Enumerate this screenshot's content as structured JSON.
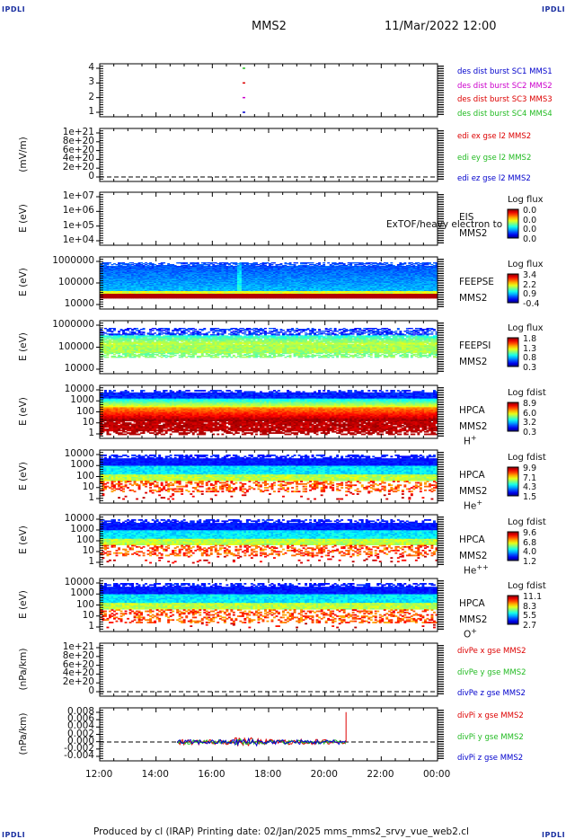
{
  "header": {
    "title": "MMS2",
    "datetime": "11/Mar/2022 12:00",
    "corner": "IPDLI"
  },
  "footer": {
    "text": "Produced by cl (IRAP)   Printing date: 02/Jan/2025   mms_mms2_srvy_vue_web2.cl"
  },
  "colors": {
    "mms1": "#0000cc",
    "mms2": "#cc00cc",
    "mms3": "#dd0000",
    "mms4": "#22bb22",
    "x": "#dd0000",
    "y": "#22bb22",
    "z": "#0000cc"
  },
  "chart_data": [
    {
      "id": "burst",
      "type": "scatter",
      "yticks": [
        "4",
        "3",
        "2",
        "1"
      ],
      "legend": [
        "des dist burst SC1 MMS1",
        "des dist burst SC2 MMS2",
        "des dist burst SC3 MMS3",
        "des dist burst SC4 MMS4"
      ]
    },
    {
      "id": "edi",
      "type": "line",
      "ylabel": "(mV/m)",
      "yticks": [
        "1e+21",
        "8e+20",
        "6e+20",
        "4e+20",
        "2e+20",
        "0"
      ],
      "legend": [
        "edi ex gse l2 MMS2",
        "edi ey gse l2 MMS2",
        "edi ez gse l2 MMS2"
      ]
    },
    {
      "id": "eis",
      "type": "heatmap",
      "ylabel": "E (eV)",
      "yticks": [
        "1e+07",
        "1e+06",
        "1e+05",
        "1e+04"
      ],
      "instrument": [
        "EIS",
        "MMS2"
      ],
      "overlay_text": "ExTOF/heavy electron to",
      "cbar_title": "Log flux",
      "cbar_values": [
        "0.0",
        "0.0",
        "0.0",
        "0.0"
      ]
    },
    {
      "id": "feepse",
      "type": "heatmap",
      "ylabel": "E (eV)",
      "yticks": [
        "1000000",
        "100000",
        "10000"
      ],
      "instrument": [
        "FEEPSE",
        "MMS2"
      ],
      "cbar_title": "Log flux",
      "cbar_values": [
        "3.4",
        "2.2",
        "0.9",
        "-0.4"
      ]
    },
    {
      "id": "feepsi",
      "type": "heatmap",
      "ylabel": "E (eV)",
      "yticks": [
        "1000000",
        "100000",
        "10000"
      ],
      "instrument": [
        "FEEPSI",
        "MMS2"
      ],
      "cbar_title": "Log flux",
      "cbar_values": [
        "1.8",
        "1.3",
        "0.8",
        "0.3"
      ]
    },
    {
      "id": "hpca_h",
      "type": "heatmap",
      "ylabel": "E (eV)",
      "yticks": [
        "10000",
        "1000",
        "100",
        "10",
        "1"
      ],
      "instrument": [
        "HPCA",
        "MMS2"
      ],
      "species": "H",
      "species_sup": "+",
      "cbar_title": "Log fdist",
      "cbar_values": [
        "8.9",
        "6.0",
        "3.2",
        "0.3"
      ]
    },
    {
      "id": "hpca_he",
      "type": "heatmap",
      "ylabel": "E (eV)",
      "yticks": [
        "10000",
        "1000",
        "100",
        "10",
        "1"
      ],
      "instrument": [
        "HPCA",
        "MMS2"
      ],
      "species": "He",
      "species_sup": "+",
      "cbar_title": "Log fdist",
      "cbar_values": [
        "9.9",
        "7.1",
        "4.3",
        "1.5"
      ]
    },
    {
      "id": "hpca_he2",
      "type": "heatmap",
      "ylabel": "E (eV)",
      "yticks": [
        "10000",
        "1000",
        "100",
        "10",
        "1"
      ],
      "instrument": [
        "HPCA",
        "MMS2"
      ],
      "species": "He",
      "species_sup": "++",
      "cbar_title": "Log fdist",
      "cbar_values": [
        "9.6",
        "6.8",
        "4.0",
        "1.2"
      ]
    },
    {
      "id": "hpca_o",
      "type": "heatmap",
      "ylabel": "E (eV)",
      "yticks": [
        "10000",
        "1000",
        "100",
        "10",
        "1"
      ],
      "instrument": [
        "HPCA",
        "MMS2"
      ],
      "species": "O",
      "species_sup": "+",
      "cbar_title": "Log fdist",
      "cbar_values": [
        "11.1",
        "8.3",
        "5.5",
        "2.7"
      ]
    },
    {
      "id": "divpe",
      "type": "line",
      "ylabel": "(nPa/km)",
      "yticks": [
        "1e+21",
        "8e+20",
        "6e+20",
        "4e+20",
        "2e+20",
        "0"
      ],
      "legend": [
        "divPe x gse MMS2",
        "divPe y gse MMS2",
        "divPe z gse MMS2"
      ]
    },
    {
      "id": "divpi",
      "type": "line",
      "ylabel": "(nPa/km)",
      "yticks": [
        "0.008",
        "0.006",
        "0.004",
        "0.002",
        "0.000",
        "-0.002",
        "-0.004"
      ],
      "ylim": [
        -0.0045,
        0.009
      ],
      "legend": [
        "divPi x gse MMS2",
        "divPi y gse MMS2",
        "divPi z gse MMS2"
      ]
    }
  ],
  "xaxis": {
    "ticks": [
      "12:00",
      "14:00",
      "16:00",
      "18:00",
      "20:00",
      "22:00",
      "00:00"
    ]
  }
}
